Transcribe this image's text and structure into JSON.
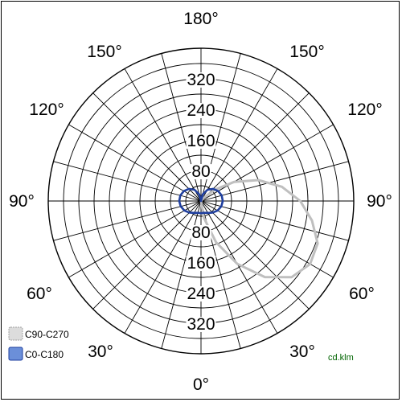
{
  "chart_data": {
    "type": "polar",
    "unit_label": "cd.klm",
    "radial_ticks": [
      80,
      160,
      240,
      320
    ],
    "rmax": 400,
    "angle_labels": {
      "top": "180°",
      "bottom": "0°",
      "left": "90°",
      "right": "90°",
      "upper_left": [
        "150°",
        "120°"
      ],
      "upper_right": [
        "150°",
        "120°"
      ],
      "lower_left": [
        "60°",
        "30°"
      ],
      "lower_right": [
        "60°",
        "30°"
      ]
    },
    "grid": true,
    "legend_position": "bottom-left",
    "series": [
      {
        "name": "C90-C270",
        "color": "#bfbfbf",
        "fill": "#d9d9d9",
        "points": [
          [
            0,
            0
          ],
          [
            10,
            45
          ],
          [
            20,
            115
          ],
          [
            30,
            190
          ],
          [
            40,
            260
          ],
          [
            50,
            310
          ],
          [
            60,
            330
          ],
          [
            70,
            325
          ],
          [
            80,
            295
          ],
          [
            90,
            260
          ],
          [
            100,
            215
          ],
          [
            110,
            160
          ],
          [
            120,
            100
          ],
          [
            130,
            45
          ],
          [
            140,
            10
          ],
          [
            180,
            0
          ]
        ]
      },
      {
        "name": "C0-C180",
        "color": "#1f3f9f",
        "fill": "#6b8fd9",
        "points": [
          [
            0,
            32
          ],
          [
            15,
            32
          ],
          [
            30,
            36
          ],
          [
            45,
            43
          ],
          [
            60,
            50
          ],
          [
            75,
            55
          ],
          [
            90,
            57
          ],
          [
            105,
            56
          ],
          [
            120,
            52
          ],
          [
            135,
            45
          ],
          [
            150,
            34
          ],
          [
            165,
            18
          ],
          [
            180,
            0
          ]
        ]
      }
    ]
  }
}
